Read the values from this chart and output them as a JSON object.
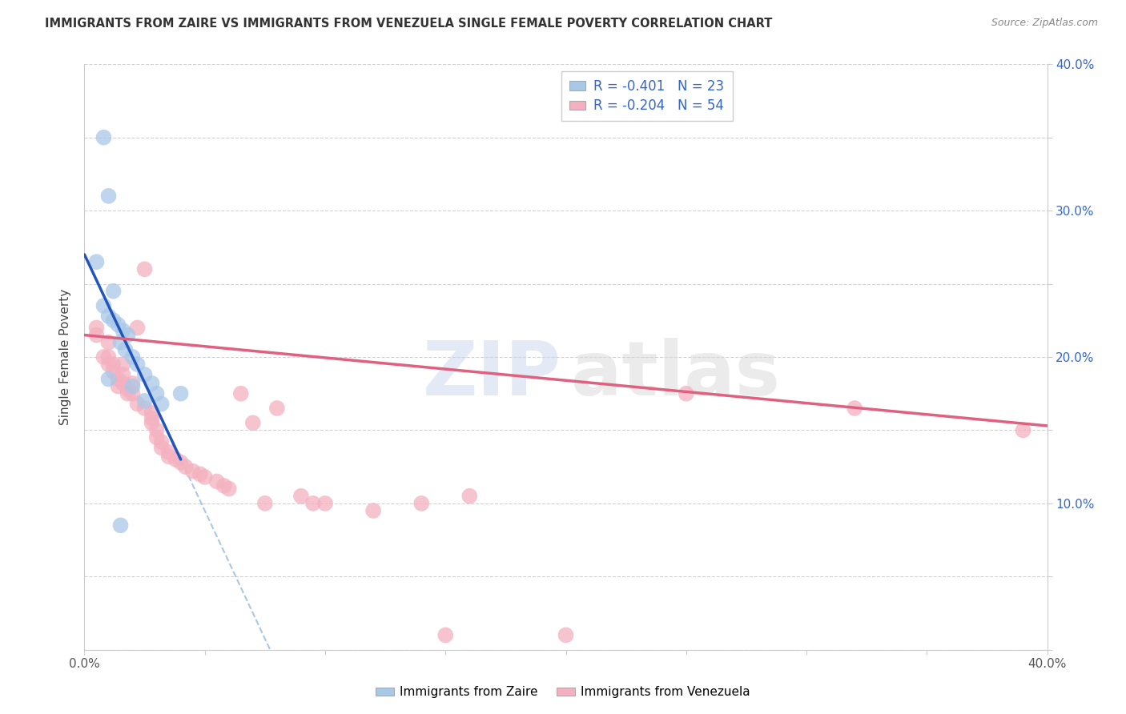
{
  "title": "IMMIGRANTS FROM ZAIRE VS IMMIGRANTS FROM VENEZUELA SINGLE FEMALE POVERTY CORRELATION CHART",
  "source": "Source: ZipAtlas.com",
  "ylabel": "Single Female Poverty",
  "xlim": [
    0.0,
    0.4
  ],
  "ylim": [
    0.0,
    0.4
  ],
  "zaire_color": "#a8c8e8",
  "venezuela_color": "#f4b0c0",
  "zaire_line_color": "#2255bb",
  "venezuela_line_color": "#e06080",
  "zaire_R": "-0.401",
  "zaire_N": "23",
  "venezuela_R": "-0.204",
  "venezuela_N": "54",
  "zaire_points_x": [
    0.005,
    0.008,
    0.01,
    0.012,
    0.008,
    0.01,
    0.012,
    0.014,
    0.016,
    0.018,
    0.015,
    0.017,
    0.02,
    0.022,
    0.025,
    0.028,
    0.03,
    0.032,
    0.02,
    0.025,
    0.015,
    0.01,
    0.04
  ],
  "zaire_points_y": [
    0.265,
    0.35,
    0.31,
    0.245,
    0.235,
    0.228,
    0.225,
    0.222,
    0.218,
    0.215,
    0.21,
    0.205,
    0.2,
    0.195,
    0.188,
    0.182,
    0.175,
    0.168,
    0.18,
    0.17,
    0.085,
    0.185,
    0.175
  ],
  "venezuela_points_x": [
    0.005,
    0.005,
    0.008,
    0.01,
    0.01,
    0.01,
    0.012,
    0.012,
    0.014,
    0.014,
    0.016,
    0.016,
    0.016,
    0.018,
    0.018,
    0.02,
    0.02,
    0.022,
    0.022,
    0.025,
    0.025,
    0.028,
    0.028,
    0.028,
    0.03,
    0.03,
    0.032,
    0.032,
    0.035,
    0.035,
    0.038,
    0.04,
    0.042,
    0.045,
    0.048,
    0.05,
    0.055,
    0.058,
    0.06,
    0.065,
    0.07,
    0.075,
    0.08,
    0.09,
    0.095,
    0.1,
    0.12,
    0.14,
    0.15,
    0.16,
    0.2,
    0.25,
    0.32,
    0.39
  ],
  "venezuela_points_y": [
    0.22,
    0.215,
    0.2,
    0.21,
    0.2,
    0.195,
    0.195,
    0.19,
    0.185,
    0.18,
    0.195,
    0.188,
    0.182,
    0.178,
    0.175,
    0.182,
    0.175,
    0.22,
    0.168,
    0.26,
    0.165,
    0.162,
    0.158,
    0.155,
    0.15,
    0.145,
    0.142,
    0.138,
    0.135,
    0.132,
    0.13,
    0.128,
    0.125,
    0.122,
    0.12,
    0.118,
    0.115,
    0.112,
    0.11,
    0.175,
    0.155,
    0.1,
    0.165,
    0.105,
    0.1,
    0.1,
    0.095,
    0.1,
    0.01,
    0.105,
    0.01,
    0.175,
    0.165,
    0.15
  ],
  "watermark_zip": "ZIP",
  "watermark_atlas": "atlas",
  "background_color": "#ffffff",
  "grid_color": "#cccccc",
  "legend_text_color": "#3366cc"
}
